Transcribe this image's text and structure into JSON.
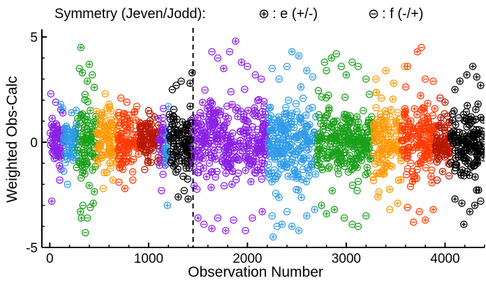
{
  "legend": {
    "heading": "Symmetry (Jeven/Jodd):",
    "entries": [
      {
        "symbol": "plus-circle",
        "label": ": e (+/-)"
      },
      {
        "symbol": "minus-circle",
        "label": ": f (-/+)"
      }
    ]
  },
  "chart_data": {
    "type": "scatter",
    "xlabel": "Observation Number",
    "ylabel": "Weighted Obs-Calc",
    "xlim": [
      -80,
      4400
    ],
    "ylim": [
      -5,
      5.3
    ],
    "xticks": [
      0,
      1000,
      2000,
      3000,
      4000
    ],
    "yticks": [
      -5,
      0,
      5
    ],
    "marker": "open circle with + (e) or - (f)",
    "divider_x": 1450,
    "divider_style": "dashed vertical line",
    "bands": [
      {
        "x": [
          0,
          140
        ],
        "color": "#8b1fe6",
        "spread": 1.1,
        "outliers": [
          [
            10,
            2.3
          ],
          [
            20,
            -2.8
          ],
          [
            60,
            1.9
          ],
          [
            100,
            -1.8
          ]
        ]
      },
      {
        "x": [
          140,
          270
        ],
        "color": "#2f9be8",
        "spread": 1.0,
        "outliers": [
          [
            110,
            1.8
          ],
          [
            130,
            1.6
          ],
          [
            220,
            1.4
          ],
          [
            180,
            -2.0
          ]
        ]
      },
      {
        "x": [
          270,
          470
        ],
        "color": "#1aa01a",
        "spread": 1.5,
        "outliers": [
          [
            315,
            4.5
          ],
          [
            300,
            3.5
          ],
          [
            330,
            3.3
          ],
          [
            380,
            2.9
          ],
          [
            400,
            3.7
          ],
          [
            430,
            3.2
          ],
          [
            450,
            2.6
          ],
          [
            310,
            -3.3
          ],
          [
            320,
            -3.6
          ],
          [
            335,
            -3.0
          ],
          [
            360,
            -4.3
          ],
          [
            380,
            -3.6
          ],
          [
            410,
            -3.1
          ],
          [
            440,
            -2.9
          ]
        ]
      },
      {
        "x": [
          470,
          690
        ],
        "color": "#ff9800",
        "spread": 1.2,
        "outliers": [
          [
            560,
            2.3
          ],
          [
            600,
            1.8
          ],
          [
            540,
            -2.2
          ],
          [
            640,
            -1.8
          ]
        ]
      },
      {
        "x": [
          690,
          910
        ],
        "color": "#ff3a00",
        "spread": 1.1,
        "outliers": [
          [
            720,
            2.1
          ],
          [
            780,
            1.9
          ],
          [
            700,
            -1.9
          ],
          [
            760,
            -2.2
          ],
          [
            840,
            -1.8
          ],
          [
            880,
            1.7
          ]
        ]
      },
      {
        "x": [
          910,
          1100
        ],
        "color": "#b81800",
        "spread": 0.85,
        "outliers": [
          [
            1000,
            1.5
          ],
          [
            960,
            -1.3
          ],
          [
            1060,
            1.2
          ]
        ]
      },
      {
        "x": [
          1100,
          1170
        ],
        "color": "#8b1fe6",
        "spread": 0.9,
        "outliers": [
          [
            1130,
            -2.3
          ],
          [
            1150,
            1.6
          ]
        ]
      },
      {
        "x": [
          1170,
          1210
        ],
        "color": "#2f9be8",
        "spread": 0.9,
        "outliers": [
          [
            1190,
            -3.0
          ],
          [
            1200,
            1.7
          ]
        ]
      },
      {
        "x": [
          1210,
          1450
        ],
        "color": "#000000",
        "spread": 1.2,
        "outliers": [
          [
            1240,
            2.5
          ],
          [
            1280,
            2.7
          ],
          [
            1300,
            -2.6
          ],
          [
            1330,
            2.9
          ],
          [
            1360,
            -2.3
          ],
          [
            1420,
            2.8
          ],
          [
            1440,
            3.3
          ],
          [
            1400,
            -2.7
          ]
        ]
      },
      {
        "x": [
          1450,
          2200
        ],
        "color": "#8b1fe6",
        "spread": 1.55,
        "outliers": [
          [
            1640,
            4.3
          ],
          [
            1700,
            4.0
          ],
          [
            1760,
            3.5
          ],
          [
            1820,
            4.3
          ],
          [
            1880,
            4.8
          ],
          [
            1940,
            3.8
          ],
          [
            2000,
            3.6
          ],
          [
            2080,
            3.2
          ],
          [
            2140,
            3.0
          ],
          [
            1500,
            -3.6
          ],
          [
            1560,
            -3.9
          ],
          [
            1640,
            -4.1
          ],
          [
            1700,
            -3.6
          ],
          [
            1780,
            -4.2
          ],
          [
            1860,
            -3.7
          ],
          [
            1980,
            -4.2
          ],
          [
            2050,
            -3.6
          ],
          [
            2150,
            -3.3
          ]
        ]
      },
      {
        "x": [
          2200,
          2700
        ],
        "color": "#2f9be8",
        "spread": 1.5,
        "outliers": [
          [
            2250,
            3.5
          ],
          [
            2320,
            3.0
          ],
          [
            2400,
            3.6
          ],
          [
            2450,
            4.3
          ],
          [
            2520,
            4.1
          ],
          [
            2600,
            3.4
          ],
          [
            2660,
            3.1
          ],
          [
            2250,
            -3.5
          ],
          [
            2260,
            -4.5
          ],
          [
            2300,
            -4.0
          ],
          [
            2350,
            -3.9
          ],
          [
            2400,
            -3.3
          ],
          [
            2450,
            -4.0
          ],
          [
            2520,
            -4.2
          ],
          [
            2600,
            -3.5
          ],
          [
            2680,
            -3.2
          ],
          [
            2290,
            -5.2
          ]
        ]
      },
      {
        "x": [
          2700,
          3270
        ],
        "color": "#1aa01a",
        "spread": 1.4,
        "outliers": [
          [
            2780,
            3.8
          ],
          [
            2800,
            3.4
          ],
          [
            2850,
            4.0
          ],
          [
            2900,
            4.2
          ],
          [
            2950,
            3.6
          ],
          [
            3000,
            3.2
          ],
          [
            3060,
            3.8
          ],
          [
            3120,
            3.6
          ],
          [
            3200,
            3.0
          ],
          [
            2750,
            -3.0
          ],
          [
            2800,
            -3.4
          ],
          [
            2880,
            -3.2
          ],
          [
            2980,
            -3.6
          ],
          [
            3060,
            -3.9
          ],
          [
            3120,
            -4.0
          ],
          [
            3200,
            -3.5
          ]
        ]
      },
      {
        "x": [
          3270,
          3560
        ],
        "color": "#ff9800",
        "spread": 1.35,
        "outliers": [
          [
            3300,
            3.0
          ],
          [
            3400,
            3.4
          ],
          [
            3480,
            2.8
          ],
          [
            3320,
            -2.6
          ],
          [
            3440,
            -3.2
          ],
          [
            3520,
            -2.9
          ],
          [
            3590,
            3.6
          ]
        ]
      },
      {
        "x": [
          3560,
          3900
        ],
        "color": "#ff3a00",
        "spread": 1.5,
        "outliers": [
          [
            3620,
            3.6
          ],
          [
            3720,
            4.3
          ],
          [
            3760,
            4.5
          ],
          [
            3800,
            3.0
          ],
          [
            3880,
            2.9
          ],
          [
            3620,
            -3.1
          ],
          [
            3680,
            -3.8
          ],
          [
            3740,
            -3.3
          ],
          [
            3800,
            -3.7
          ],
          [
            3880,
            -3.2
          ]
        ]
      },
      {
        "x": [
          3900,
          4060
        ],
        "color": "#b81800",
        "spread": 1.0,
        "outliers": [
          [
            3950,
            2.1
          ],
          [
            4000,
            1.9
          ],
          [
            3920,
            -1.8
          ],
          [
            4040,
            -1.6
          ]
        ]
      },
      {
        "x": [
          4060,
          4400
        ],
        "color": "#000000",
        "spread": 1.3,
        "outliers": [
          [
            4100,
            2.5
          ],
          [
            4150,
            2.9
          ],
          [
            4220,
            3.2
          ],
          [
            4280,
            3.6
          ],
          [
            4320,
            3.1
          ],
          [
            4360,
            2.7
          ],
          [
            4100,
            -2.7
          ],
          [
            4170,
            -2.9
          ],
          [
            4190,
            -3.9
          ],
          [
            4250,
            -3.3
          ],
          [
            4300,
            -3.0
          ],
          [
            4360,
            -2.8
          ]
        ]
      }
    ]
  }
}
